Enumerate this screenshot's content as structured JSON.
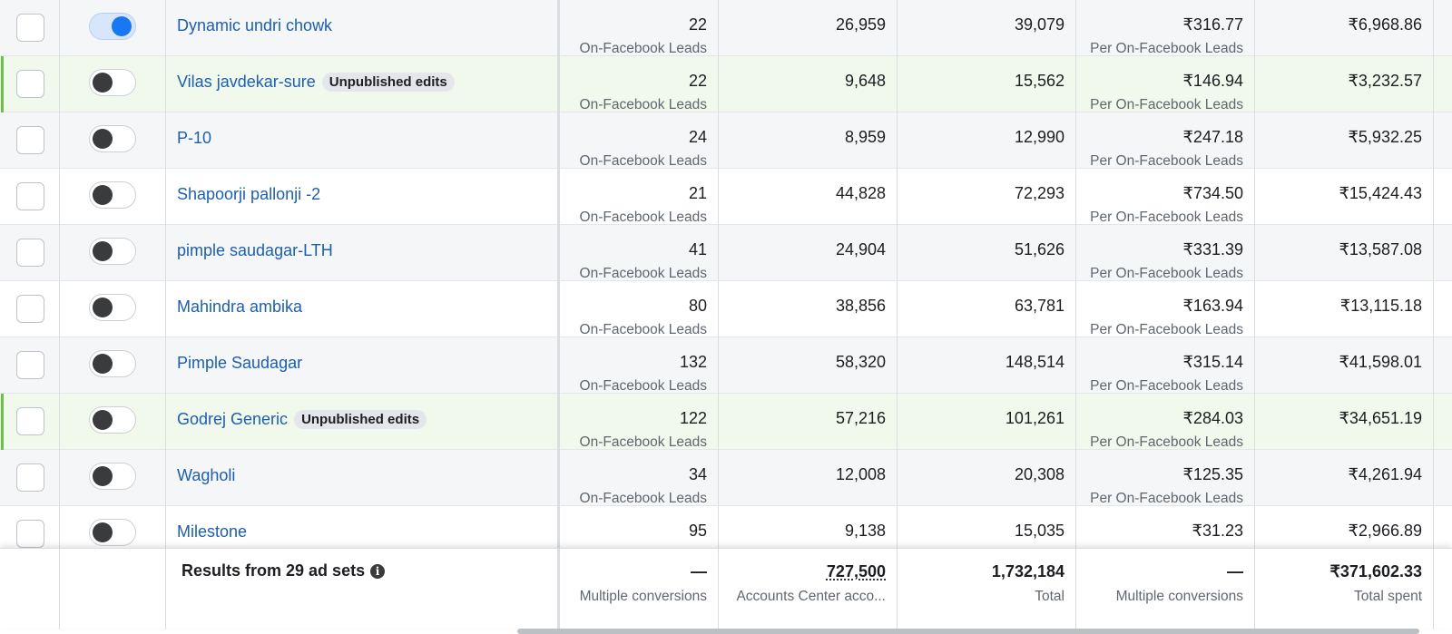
{
  "rows": [
    {
      "name": "Dynamic undri chowk",
      "badge": "",
      "toggle_on": true,
      "results": "22",
      "results_sub": "On-Facebook Leads",
      "reach": "26,959",
      "impressions": "39,079",
      "cost_per_result": "₹316.77",
      "cpr_sub": "Per On-Facebook Leads",
      "amount_spent": "₹6,968.86"
    },
    {
      "name": "Vilas javdekar-sure",
      "badge": "Unpublished edits",
      "toggle_on": false,
      "results": "22",
      "results_sub": "On-Facebook Leads",
      "reach": "9,648",
      "impressions": "15,562",
      "cost_per_result": "₹146.94",
      "cpr_sub": "Per On-Facebook Leads",
      "amount_spent": "₹3,232.57"
    },
    {
      "name": "P-10",
      "badge": "",
      "toggle_on": false,
      "results": "24",
      "results_sub": "On-Facebook Leads",
      "reach": "8,959",
      "impressions": "12,990",
      "cost_per_result": "₹247.18",
      "cpr_sub": "Per On-Facebook Leads",
      "amount_spent": "₹5,932.25"
    },
    {
      "name": "Shapoorji pallonji -2",
      "badge": "",
      "toggle_on": false,
      "results": "21",
      "results_sub": "On-Facebook Leads",
      "reach": "44,828",
      "impressions": "72,293",
      "cost_per_result": "₹734.50",
      "cpr_sub": "Per On-Facebook Leads",
      "amount_spent": "₹15,424.43"
    },
    {
      "name": "pimple saudagar-LTH",
      "badge": "",
      "toggle_on": false,
      "results": "41",
      "results_sub": "On-Facebook Leads",
      "reach": "24,904",
      "impressions": "51,626",
      "cost_per_result": "₹331.39",
      "cpr_sub": "Per On-Facebook Leads",
      "amount_spent": "₹13,587.08"
    },
    {
      "name": "Mahindra ambika",
      "badge": "",
      "toggle_on": false,
      "results": "80",
      "results_sub": "On-Facebook Leads",
      "reach": "38,856",
      "impressions": "63,781",
      "cost_per_result": "₹163.94",
      "cpr_sub": "Per On-Facebook Leads",
      "amount_spent": "₹13,115.18"
    },
    {
      "name": "Pimple Saudagar",
      "badge": "",
      "toggle_on": false,
      "results": "132",
      "results_sub": "On-Facebook Leads",
      "reach": "58,320",
      "impressions": "148,514",
      "cost_per_result": "₹315.14",
      "cpr_sub": "Per On-Facebook Leads",
      "amount_spent": "₹41,598.01"
    },
    {
      "name": "Godrej Generic",
      "badge": "Unpublished edits",
      "toggle_on": false,
      "results": "122",
      "results_sub": "On-Facebook Leads",
      "reach": "57,216",
      "impressions": "101,261",
      "cost_per_result": "₹284.03",
      "cpr_sub": "Per On-Facebook Leads",
      "amount_spent": "₹34,651.19"
    },
    {
      "name": "Wagholi",
      "badge": "",
      "toggle_on": false,
      "results": "34",
      "results_sub": "On-Facebook Leads",
      "reach": "12,008",
      "impressions": "20,308",
      "cost_per_result": "₹125.35",
      "cpr_sub": "Per On-Facebook Leads",
      "amount_spent": "₹4,261.94"
    },
    {
      "name": "Milestone",
      "badge": "",
      "toggle_on": false,
      "results": "95",
      "results_sub": "On-Facebook Leads",
      "reach": "9,138",
      "impressions": "15,035",
      "cost_per_result": "₹31.23",
      "cpr_sub": "Per On-Facebook Leads",
      "amount_spent": "₹2,966.89"
    }
  ],
  "footer": {
    "label": "Results from 29 ad sets",
    "info_icon": "info-icon",
    "results": "—",
    "results_sub": "Multiple conversions",
    "reach": "727,500",
    "reach_sub": "Accounts Center acco...",
    "impressions": "1,732,184",
    "impressions_sub": "Total",
    "cost_per_result": "—",
    "cpr_sub": "Multiple conversions",
    "amount_spent": "₹371,602.33",
    "amount_spent_sub": "Total spent"
  },
  "colors": {
    "link": "#1d5fae",
    "toggle_on": "#1877f2",
    "edited_row_bg": "#f1f8ec",
    "edited_accent": "#6cc04a"
  }
}
